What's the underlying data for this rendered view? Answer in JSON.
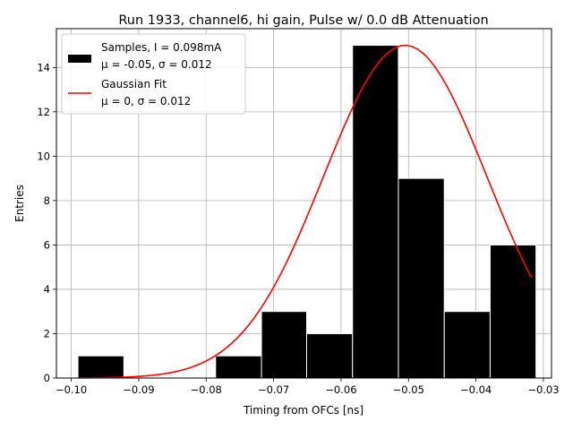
{
  "chart_data": {
    "type": "bar",
    "title": "Run 1933, channel6, hi gain, Pulse w/ 0.0 dB Attenuation",
    "xlabel": "Timing from OFCs [ns]",
    "ylabel": "Entries",
    "xlim": [
      -0.1022,
      -0.0288
    ],
    "ylim": [
      0,
      15.75
    ],
    "grid": true,
    "legend_position": "top-left",
    "x_ticks": [
      {
        "value": -0.1,
        "label": "−0.10"
      },
      {
        "value": -0.09,
        "label": "−0.09"
      },
      {
        "value": -0.08,
        "label": "−0.08"
      },
      {
        "value": -0.07,
        "label": "−0.07"
      },
      {
        "value": -0.06,
        "label": "−0.06"
      },
      {
        "value": -0.05,
        "label": "−0.05"
      },
      {
        "value": -0.04,
        "label": "−0.04"
      },
      {
        "value": -0.03,
        "label": "−0.03"
      }
    ],
    "y_ticks": [
      {
        "value": 0,
        "label": "0"
      },
      {
        "value": 2,
        "label": "2"
      },
      {
        "value": 4,
        "label": "4"
      },
      {
        "value": 6,
        "label": "6"
      },
      {
        "value": 8,
        "label": "8"
      },
      {
        "value": 10,
        "label": "10"
      },
      {
        "value": 12,
        "label": "12"
      },
      {
        "value": 14,
        "label": "14"
      }
    ],
    "histogram": {
      "name_line1": "Samples, I = 0.098mA",
      "name_line2": "μ = -0.05, σ = 0.012",
      "color": "#000000",
      "bins": [
        {
          "x0": -0.099,
          "x1": -0.0922,
          "count": 1
        },
        {
          "x0": -0.0922,
          "x1": -0.0854,
          "count": 0
        },
        {
          "x0": -0.0854,
          "x1": -0.0786,
          "count": 0
        },
        {
          "x0": -0.0786,
          "x1": -0.0718,
          "count": 1
        },
        {
          "x0": -0.0718,
          "x1": -0.0651,
          "count": 3
        },
        {
          "x0": -0.0651,
          "x1": -0.0583,
          "count": 2
        },
        {
          "x0": -0.0583,
          "x1": -0.0515,
          "count": 15
        },
        {
          "x0": -0.0515,
          "x1": -0.0447,
          "count": 9
        },
        {
          "x0": -0.0447,
          "x1": -0.0379,
          "count": 3
        },
        {
          "x0": -0.0379,
          "x1": -0.0311,
          "count": 6
        }
      ]
    },
    "fit": {
      "name_line1": "Gaussian Fit",
      "name_line2": "μ = 0, σ = 0.012",
      "color": "#ff0000",
      "amplitude": 15,
      "mean": -0.0505,
      "sigma": 0.0121,
      "x_range": [
        -0.099,
        -0.0318
      ]
    }
  }
}
